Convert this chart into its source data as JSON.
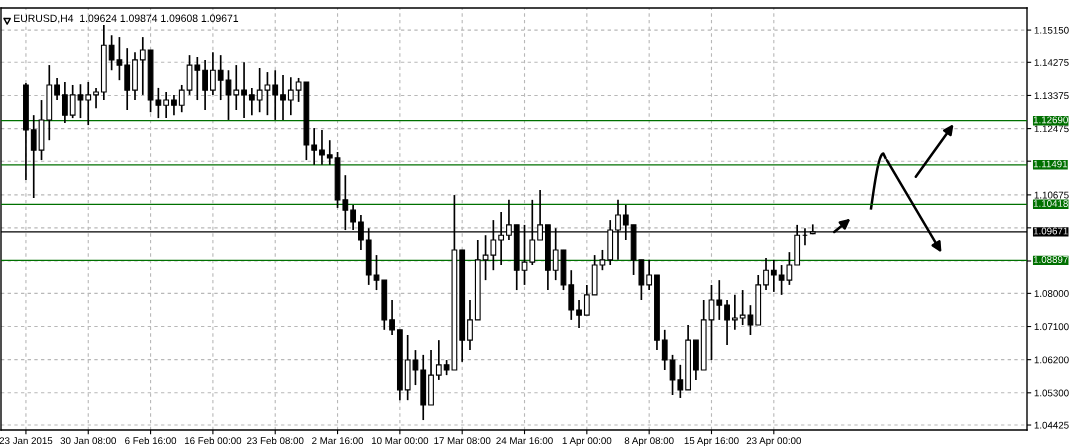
{
  "chart_data": {
    "type": "candlestick",
    "title": "EURUSD,H4  1.09624 1.09874 1.09608 1.09671",
    "categories": [
      "23 Jan 2015",
      null,
      null,
      null,
      null,
      null,
      null,
      null,
      "30 Jan 08:00",
      null,
      null,
      null,
      null,
      null,
      null,
      null,
      "6 Feb 16:00",
      null,
      null,
      null,
      null,
      null,
      null,
      null,
      "16 Feb 00:00",
      null,
      null,
      null,
      null,
      null,
      null,
      null,
      "23 Feb 08:00",
      null,
      null,
      null,
      null,
      null,
      null,
      null,
      "2 Mar 16:00",
      null,
      null,
      null,
      null,
      null,
      null,
      null,
      "10 Mar 00:00",
      null,
      null,
      null,
      null,
      null,
      null,
      null,
      "17 Mar 08:00",
      null,
      null,
      null,
      null,
      null,
      null,
      null,
      "24 Mar 16:00",
      null,
      null,
      null,
      null,
      null,
      null,
      null,
      "1 Apr 00:00",
      null,
      null,
      null,
      null,
      null,
      null,
      null,
      "8 Apr 08:00",
      null,
      null,
      null,
      null,
      null,
      null,
      null,
      "15 Apr 16:00",
      null,
      null,
      null,
      null,
      null,
      null,
      null,
      "23 Apr 00:00",
      null,
      null,
      null,
      null,
      null,
      null,
      null,
      null,
      null,
      null,
      null,
      null,
      null,
      null,
      null,
      null,
      null,
      null,
      null,
      null,
      null,
      null,
      null,
      null,
      null,
      null,
      null,
      null,
      null,
      null,
      null,
      null
    ],
    "ohlc": [
      [
        1.1366,
        1.1371,
        1.1108,
        1.1244
      ],
      [
        1.1244,
        1.1284,
        1.1059,
        1.1189
      ],
      [
        1.1189,
        1.1325,
        1.1162,
        1.1271
      ],
      [
        1.1271,
        1.142,
        1.1216,
        1.1366
      ],
      [
        1.1366,
        1.1385,
        1.1325,
        1.1339
      ],
      [
        1.1339,
        1.1374,
        1.1263,
        1.1284
      ],
      [
        1.1284,
        1.1366,
        1.1276,
        1.1339
      ],
      [
        1.1339,
        1.1368,
        1.1276,
        1.1325
      ],
      [
        1.1325,
        1.1374,
        1.1257,
        1.1339
      ],
      [
        1.1339,
        1.1358,
        1.1303,
        1.1347
      ],
      [
        1.1347,
        1.1529,
        1.1325,
        1.1474
      ],
      [
        1.1474,
        1.1501,
        1.1406,
        1.1434
      ],
      [
        1.1434,
        1.1496,
        1.1379,
        1.142
      ],
      [
        1.142,
        1.1466,
        1.1298,
        1.1352
      ],
      [
        1.1352,
        1.1455,
        1.1325,
        1.1434
      ],
      [
        1.1434,
        1.1496,
        1.1339,
        1.1461
      ],
      [
        1.1461,
        1.1461,
        1.1292,
        1.1325
      ],
      [
        1.1325,
        1.1358,
        1.1276,
        1.1311
      ],
      [
        1.1311,
        1.1347,
        1.1276,
        1.1325
      ],
      [
        1.1325,
        1.1339,
        1.1284,
        1.1311
      ],
      [
        1.1311,
        1.1366,
        1.1292,
        1.1352
      ],
      [
        1.1352,
        1.1447,
        1.1339,
        1.142
      ],
      [
        1.142,
        1.1442,
        1.1325,
        1.1406
      ],
      [
        1.1406,
        1.1434,
        1.1298,
        1.1352
      ],
      [
        1.1352,
        1.1455,
        1.1339,
        1.1406
      ],
      [
        1.1406,
        1.1447,
        1.1325,
        1.1379
      ],
      [
        1.1379,
        1.1406,
        1.1271,
        1.1339
      ],
      [
        1.1339,
        1.142,
        1.1298,
        1.1352
      ],
      [
        1.1352,
        1.1428,
        1.1276,
        1.1339
      ],
      [
        1.1339,
        1.1358,
        1.1284,
        1.1325
      ],
      [
        1.1325,
        1.1412,
        1.1292,
        1.1352
      ],
      [
        1.1352,
        1.1401,
        1.1284,
        1.1366
      ],
      [
        1.1366,
        1.1406,
        1.1271,
        1.1339
      ],
      [
        1.1339,
        1.1393,
        1.1271,
        1.1325
      ],
      [
        1.1325,
        1.1387,
        1.1284,
        1.1352
      ],
      [
        1.1352,
        1.1385,
        1.132,
        1.1374
      ],
      [
        1.1374,
        1.1374,
        1.1162,
        1.1203
      ],
      [
        1.1203,
        1.1249,
        1.1149,
        1.1189
      ],
      [
        1.1189,
        1.1244,
        1.1149,
        1.1176
      ],
      [
        1.1176,
        1.1216,
        1.1149,
        1.1168
      ],
      [
        1.1168,
        1.1184,
        1.1032,
        1.1054
      ],
      [
        1.1054,
        1.1121,
        1.0972,
        1.1026
      ],
      [
        1.1026,
        1.104,
        1.0972,
        1.0994
      ],
      [
        1.0994,
        1.1013,
        1.0918,
        1.0945
      ],
      [
        1.0945,
        1.0977,
        1.0823,
        1.085
      ],
      [
        1.085,
        1.0904,
        1.0809,
        1.0836
      ],
      [
        1.0836,
        1.0836,
        1.0701,
        1.0728
      ],
      [
        1.0728,
        1.0782,
        1.0687,
        1.0701
      ],
      [
        1.0701,
        1.0701,
        1.051,
        1.0538
      ],
      [
        1.0538,
        1.0687,
        1.051,
        1.0619
      ],
      [
        1.0619,
        1.0646,
        1.0551,
        1.0592
      ],
      [
        1.0592,
        1.0633,
        1.0456,
        1.0497
      ],
      [
        1.0497,
        1.0646,
        1.0497,
        1.0578
      ],
      [
        1.0578,
        1.0673,
        1.0565,
        1.0606
      ],
      [
        1.0606,
        1.0619,
        1.0578,
        1.0592
      ],
      [
        1.0592,
        1.1067,
        1.0592,
        1.0918
      ],
      [
        1.0918,
        1.0918,
        1.0614,
        1.0673
      ],
      [
        1.0673,
        1.0782,
        1.0646,
        1.0728
      ],
      [
        1.0728,
        1.0945,
        1.0728,
        1.0891
      ],
      [
        1.0891,
        1.0958,
        1.0836,
        1.0904
      ],
      [
        1.0904,
        1.0999,
        1.0863,
        1.0945
      ],
      [
        1.0945,
        1.1021,
        1.0877,
        1.0958
      ],
      [
        1.0958,
        1.1054,
        1.0945,
        1.0986
      ],
      [
        1.0986,
        1.0986,
        1.0809,
        1.0863
      ],
      [
        1.0863,
        1.0986,
        1.0823,
        1.0885
      ],
      [
        1.0885,
        1.1054,
        1.0877,
        1.0945
      ],
      [
        1.0945,
        1.1081,
        1.0945,
        1.0986
      ],
      [
        1.0986,
        1.0986,
        1.0809,
        1.0863
      ],
      [
        1.0863,
        1.0977,
        1.0836,
        1.0918
      ],
      [
        1.0918,
        1.0918,
        1.0809,
        1.0823
      ],
      [
        1.0823,
        1.0863,
        1.0728,
        1.0755
      ],
      [
        1.0755,
        1.0782,
        1.0706,
        1.0741
      ],
      [
        1.0741,
        1.0823,
        1.0741,
        1.0796
      ],
      [
        1.0796,
        1.0904,
        1.0796,
        1.0877
      ],
      [
        1.0877,
        1.0918,
        1.0863,
        1.0891
      ],
      [
        1.0891,
        1.0999,
        1.0877,
        1.0972
      ],
      [
        1.0972,
        1.1054,
        1.0891,
        1.1013
      ],
      [
        1.1013,
        1.104,
        1.0945,
        1.0986
      ],
      [
        1.0986,
        1.0986,
        1.085,
        1.0891
      ],
      [
        1.0891,
        1.0891,
        1.0782,
        1.0823
      ],
      [
        1.0823,
        1.0891,
        1.0809,
        1.085
      ],
      [
        1.085,
        1.085,
        1.0646,
        1.0673
      ],
      [
        1.0673,
        1.0701,
        1.0592,
        1.0619
      ],
      [
        1.0619,
        1.0633,
        1.0524,
        1.0565
      ],
      [
        1.0565,
        1.0606,
        1.0516,
        1.0538
      ],
      [
        1.0538,
        1.0714,
        1.0538,
        1.0673
      ],
      [
        1.0673,
        1.0673,
        1.0565,
        1.0592
      ],
      [
        1.0592,
        1.0782,
        1.0592,
        1.0728
      ],
      [
        1.0728,
        1.0823,
        1.0619,
        1.0782
      ],
      [
        1.0782,
        1.0836,
        1.0728,
        1.0768
      ],
      [
        1.0768,
        1.0782,
        1.066,
        1.0728
      ],
      [
        1.0728,
        1.0796,
        1.0701,
        1.0733
      ],
      [
        1.0733,
        1.0809,
        1.0714,
        1.0741
      ],
      [
        1.0741,
        1.0768,
        1.0687,
        1.0714
      ],
      [
        1.0714,
        1.085,
        1.0714,
        1.0823
      ],
      [
        1.0823,
        1.0896,
        1.0809,
        1.0863
      ],
      [
        1.0863,
        1.0891,
        1.0804,
        1.085
      ],
      [
        1.085,
        1.0877,
        1.0796,
        1.0836
      ],
      [
        1.0836,
        1.0912,
        1.0823,
        1.0877
      ],
      [
        1.0877,
        1.0986,
        1.0877,
        1.0958
      ],
      [
        1.0958,
        1.0977,
        1.0931,
        1.0958
      ],
      [
        1.09624,
        1.09874,
        1.09608,
        1.09671
      ],
      null,
      null,
      null,
      null,
      null,
      null,
      null,
      null,
      null,
      null,
      null,
      null,
      null,
      null,
      null,
      null,
      null,
      null,
      null,
      null,
      null,
      null,
      null,
      null,
      null,
      null,
      null
    ],
    "color": "#000000",
    "ylim": [
      1.0429,
      1.1575
    ],
    "yticks": [
      {
        "value": 1.1515,
        "label": "1.15150"
      },
      {
        "value": 1.14275,
        "label": "1.14275"
      },
      {
        "value": 1.13375,
        "label": "1.13375"
      },
      {
        "value": 1.12475,
        "label": "1.12475"
      },
      {
        "value": 1.1159,
        "label": null
      },
      {
        "value": 1.10675,
        "label": "1.10675"
      },
      {
        "value": 1.0978,
        "label": null
      },
      {
        "value": 1.0888,
        "label": null
      },
      {
        "value": 1.08,
        "label": "1.08000"
      },
      {
        "value": 1.071,
        "label": "1.07100"
      },
      {
        "value": 1.062,
        "label": "1.06200"
      },
      {
        "value": 1.053,
        "label": "1.05300"
      },
      {
        "value": 1.04425,
        "label": "1.04425"
      }
    ],
    "ref_lines": [
      {
        "axis": "y",
        "value": 1.1269,
        "label": "1.12690",
        "color": "#007000"
      },
      {
        "axis": "y",
        "value": 1.11491,
        "label": "1.11491",
        "color": "#007000"
      },
      {
        "axis": "y",
        "value": 1.10418,
        "label": "1.10418",
        "color": "#007000"
      },
      {
        "axis": "y",
        "value": 1.09671,
        "label": "1.09671",
        "color": "#000000"
      },
      {
        "axis": "y",
        "value": 1.08897,
        "label": "1.08897",
        "color": "#007000"
      }
    ],
    "grid": true
  }
}
